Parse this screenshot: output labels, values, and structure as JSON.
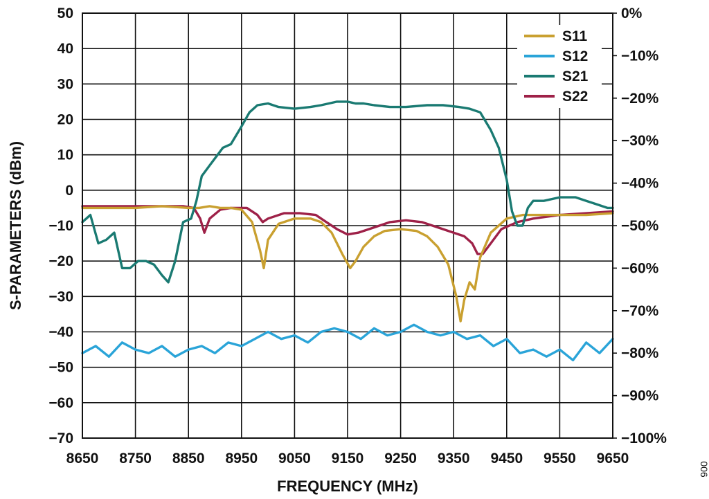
{
  "chart_data": {
    "type": "line",
    "xlabel": "FREQUENCY (MHz)",
    "ylabel": "S-PARAMETERS (dBm)",
    "xlim": [
      8650,
      9650
    ],
    "ylim": [
      -70,
      50
    ],
    "y2lim": [
      -100,
      0
    ],
    "x_ticks": [
      "8650",
      "8750",
      "8850",
      "8950",
      "9050",
      "9150",
      "9250",
      "9350",
      "9450",
      "9550",
      "9650"
    ],
    "y_ticks": [
      "50",
      "40",
      "30",
      "20",
      "10",
      "0",
      "−10",
      "−20",
      "−30",
      "−40",
      "−50",
      "−60",
      "−70"
    ],
    "y2_ticks": [
      "0%",
      "−10%",
      "−20%",
      "−30%",
      "−40%",
      "−50%",
      "−60%",
      "−70%",
      "−80%",
      "−90%",
      "−100%"
    ],
    "grid": true,
    "legend_position": "top-right",
    "figure_id": "006",
    "series": [
      {
        "name": "S11",
        "color": "#c9a030",
        "x": [
          8650,
          8700,
          8750,
          8800,
          8850,
          8870,
          8890,
          8910,
          8930,
          8950,
          8970,
          8985,
          8992,
          9000,
          9020,
          9050,
          9080,
          9100,
          9120,
          9140,
          9155,
          9165,
          9180,
          9200,
          9220,
          9250,
          9280,
          9300,
          9320,
          9340,
          9355,
          9363,
          9370,
          9380,
          9390,
          9400,
          9420,
          9450,
          9480,
          9500,
          9550,
          9600,
          9650
        ],
        "y": [
          -5,
          -5,
          -5,
          -4.5,
          -5,
          -5,
          -4.5,
          -5,
          -5,
          -5.5,
          -9,
          -17,
          -22,
          -14,
          -9.5,
          -8,
          -8,
          -9,
          -12,
          -18,
          -22,
          -20,
          -16,
          -13,
          -11.5,
          -11,
          -11.5,
          -13,
          -16,
          -21,
          -30,
          -37,
          -31,
          -26,
          -28,
          -19,
          -12,
          -8,
          -7,
          -7,
          -7,
          -7,
          -6.5
        ]
      },
      {
        "name": "S12",
        "color": "#2aa4d8",
        "x": [
          8650,
          8675,
          8700,
          8725,
          8750,
          8775,
          8800,
          8825,
          8850,
          8875,
          8900,
          8925,
          8950,
          8975,
          9000,
          9025,
          9050,
          9075,
          9100,
          9125,
          9150,
          9175,
          9200,
          9225,
          9250,
          9275,
          9300,
          9325,
          9350,
          9375,
          9400,
          9425,
          9450,
          9475,
          9500,
          9525,
          9550,
          9575,
          9600,
          9625,
          9650
        ],
        "y": [
          -46,
          -44,
          -47,
          -43,
          -45,
          -46,
          -44,
          -47,
          -45,
          -44,
          -46,
          -43,
          -44,
          -42,
          -40,
          -42,
          -41,
          -43,
          -40,
          -39,
          -40,
          -42,
          -39,
          -41,
          -40,
          -38,
          -40,
          -41,
          -40,
          -42,
          -41,
          -44,
          -42,
          -46,
          -45,
          -47,
          -45,
          -48,
          -43,
          -46,
          -42
        ]
      },
      {
        "name": "S21",
        "color": "#1a7a72",
        "x": [
          8650,
          8665,
          8680,
          8695,
          8710,
          8725,
          8740,
          8755,
          8770,
          8785,
          8800,
          8812,
          8825,
          8840,
          8855,
          8865,
          8875,
          8890,
          8905,
          8915,
          8930,
          8950,
          8965,
          8980,
          9000,
          9020,
          9050,
          9080,
          9100,
          9130,
          9150,
          9165,
          9180,
          9200,
          9230,
          9260,
          9300,
          9330,
          9360,
          9380,
          9400,
          9420,
          9435,
          9450,
          9460,
          9470,
          9480,
          9490,
          9500,
          9520,
          9550,
          9580,
          9600,
          9620,
          9640,
          9650
        ],
        "y": [
          -9,
          -7,
          -15,
          -14,
          -12,
          -22,
          -22,
          -20,
          -20,
          -21,
          -24,
          -26,
          -20,
          -9,
          -8,
          -3,
          4,
          7,
          10,
          12,
          13,
          18,
          22,
          24,
          24.5,
          23.5,
          23,
          23.5,
          24,
          25,
          25,
          24.5,
          24.5,
          24,
          23.5,
          23.5,
          24,
          24,
          23.5,
          23,
          22,
          17,
          12,
          3,
          -6,
          -10,
          -10,
          -5,
          -3,
          -3,
          -2,
          -2,
          -3,
          -4,
          -5,
          -5
        ]
      },
      {
        "name": "S22",
        "color": "#9e2148",
        "x": [
          8650,
          8700,
          8750,
          8800,
          8840,
          8860,
          8872,
          8880,
          8890,
          8910,
          8930,
          8960,
          8980,
          8990,
          9000,
          9030,
          9060,
          9090,
          9110,
          9130,
          9150,
          9170,
          9200,
          9230,
          9260,
          9290,
          9310,
          9330,
          9350,
          9370,
          9385,
          9395,
          9405,
          9420,
          9440,
          9470,
          9500,
          9550,
          9600,
          9650
        ],
        "y": [
          -4.5,
          -4.5,
          -4.5,
          -4.5,
          -4.5,
          -5,
          -8,
          -12,
          -8,
          -5.5,
          -5,
          -5,
          -7,
          -9,
          -8,
          -6.5,
          -6.5,
          -7,
          -9,
          -11,
          -12.5,
          -12,
          -10.5,
          -9,
          -8.5,
          -9,
          -10,
          -11,
          -12,
          -13,
          -15,
          -18,
          -18,
          -15,
          -11,
          -9,
          -8,
          -7,
          -6.5,
          -6
        ]
      }
    ]
  }
}
